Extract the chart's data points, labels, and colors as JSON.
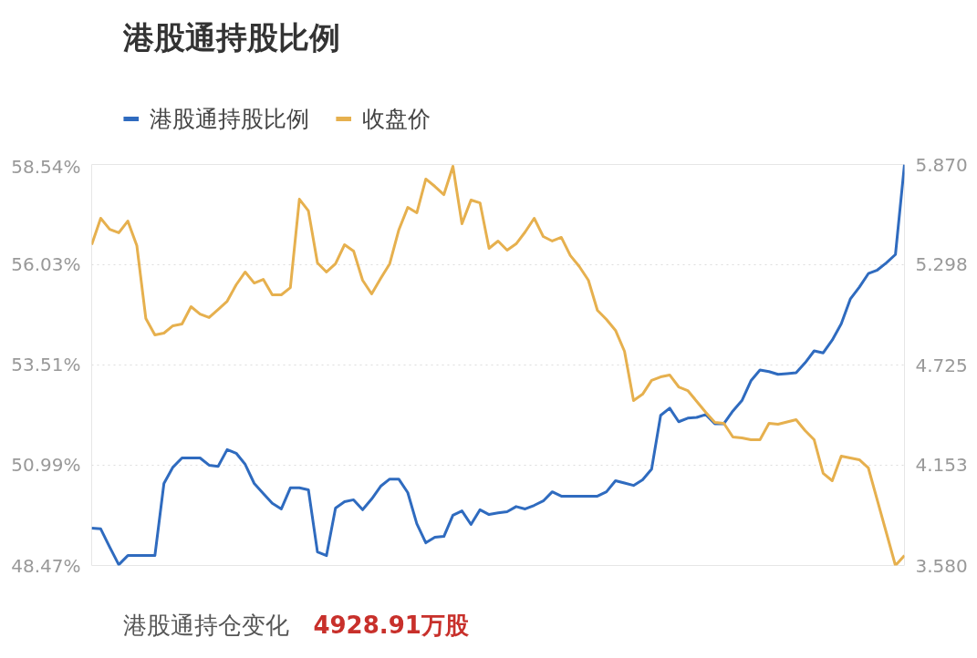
{
  "chart_data": {
    "type": "line",
    "title": "港股通持股比例",
    "annotations": [
      "港股通持仓变化",
      "4928.91万股"
    ],
    "categories": [
      null,
      null,
      null,
      null,
      null,
      null,
      null,
      null,
      null,
      null,
      null,
      null,
      null,
      null,
      null,
      null,
      null,
      null,
      null,
      null,
      null,
      null,
      null,
      null,
      null,
      null,
      null,
      null,
      null,
      null,
      null,
      null,
      null,
      null,
      null,
      null,
      null,
      null,
      null,
      null,
      null,
      null,
      null,
      null,
      null,
      null,
      null,
      null,
      null,
      null,
      null,
      null,
      null,
      null,
      null,
      null,
      null,
      null,
      null,
      null,
      null,
      null,
      null,
      null,
      null,
      null,
      null,
      null,
      null,
      null,
      null,
      null,
      null,
      null,
      null,
      null,
      null,
      null,
      null,
      null,
      null,
      null,
      null,
      null,
      null,
      null,
      null,
      null,
      null,
      null,
      null
    ],
    "ylim": [
      48.47,
      58.54
    ],
    "yticks": [
      {
        "value": 48.47,
        "label": "48.47%"
      },
      {
        "value": 50.99,
        "label": "50.99%"
      },
      {
        "value": 53.51,
        "label": "53.51%"
      },
      {
        "value": 56.03,
        "label": "56.03%"
      },
      {
        "value": 58.54,
        "label": "58.54%"
      }
    ],
    "y2lim": [
      3.58,
      5.87
    ],
    "y2ticks": [
      {
        "value": 3.58,
        "label": "3.580"
      },
      4.153,
      4.725,
      5.298,
      {
        "value": 5.87,
        "label": "5.870"
      }
    ],
    "grid": "y",
    "legend": "top left",
    "marker": "none",
    "line_style": "solid",
    "series": [
      {
        "name": "港股通持股比例",
        "color": "#2f6bbf",
        "values": [
          49.41,
          49.39,
          48.93,
          48.49,
          48.72,
          48.72,
          48.72,
          48.72,
          50.53,
          50.94,
          51.17,
          51.17,
          51.17,
          50.99,
          50.96,
          51.38,
          51.29,
          51.01,
          50.53,
          50.28,
          50.03,
          49.89,
          50.42,
          50.42,
          50.37,
          48.81,
          48.72,
          49.91,
          50.07,
          50.12,
          49.87,
          50.14,
          50.46,
          50.64,
          50.64,
          50.3,
          49.52,
          49.04,
          49.18,
          49.2,
          49.73,
          49.84,
          49.5,
          49.87,
          49.75,
          49.79,
          49.82,
          49.95,
          49.89,
          49.98,
          50.09,
          50.32,
          50.21,
          50.21,
          50.21,
          50.21,
          50.21,
          50.32,
          50.6,
          50.54,
          50.48,
          50.62,
          50.89,
          52.24,
          52.42,
          52.08,
          52.17,
          52.19,
          52.26,
          52.03,
          52.03,
          52.35,
          52.61,
          53.11,
          53.38,
          53.34,
          53.27,
          53.29,
          53.31,
          53.56,
          53.86,
          53.81,
          54.13,
          54.54,
          55.16,
          55.46,
          55.8,
          55.89,
          56.07,
          56.28,
          58.54
        ]
      },
      {
        "name": "收盘价",
        "color": "#e6b04e",
        "axis": "y2",
        "values": [
          5.412,
          5.563,
          5.5,
          5.48,
          5.547,
          5.407,
          4.99,
          4.897,
          4.907,
          4.949,
          4.959,
          5.058,
          5.016,
          4.996,
          5.042,
          5.089,
          5.183,
          5.256,
          5.193,
          5.214,
          5.126,
          5.126,
          5.167,
          5.672,
          5.605,
          5.308,
          5.256,
          5.303,
          5.412,
          5.376,
          5.209,
          5.131,
          5.219,
          5.303,
          5.495,
          5.625,
          5.594,
          5.787,
          5.745,
          5.698,
          5.86,
          5.532,
          5.667,
          5.651,
          5.391,
          5.433,
          5.381,
          5.417,
          5.485,
          5.563,
          5.459,
          5.433,
          5.454,
          5.35,
          5.287,
          5.209,
          5.037,
          4.985,
          4.923,
          4.803,
          4.522,
          4.558,
          4.637,
          4.657,
          4.668,
          4.6,
          4.579,
          4.517,
          4.454,
          4.397,
          4.392,
          4.314,
          4.309,
          4.298,
          4.298,
          4.392,
          4.387,
          4.4,
          4.413,
          4.35,
          4.298,
          4.106,
          4.064,
          4.205,
          4.194,
          4.184,
          4.137,
          3.951,
          3.766,
          3.58,
          3.637
        ]
      }
    ]
  }
}
